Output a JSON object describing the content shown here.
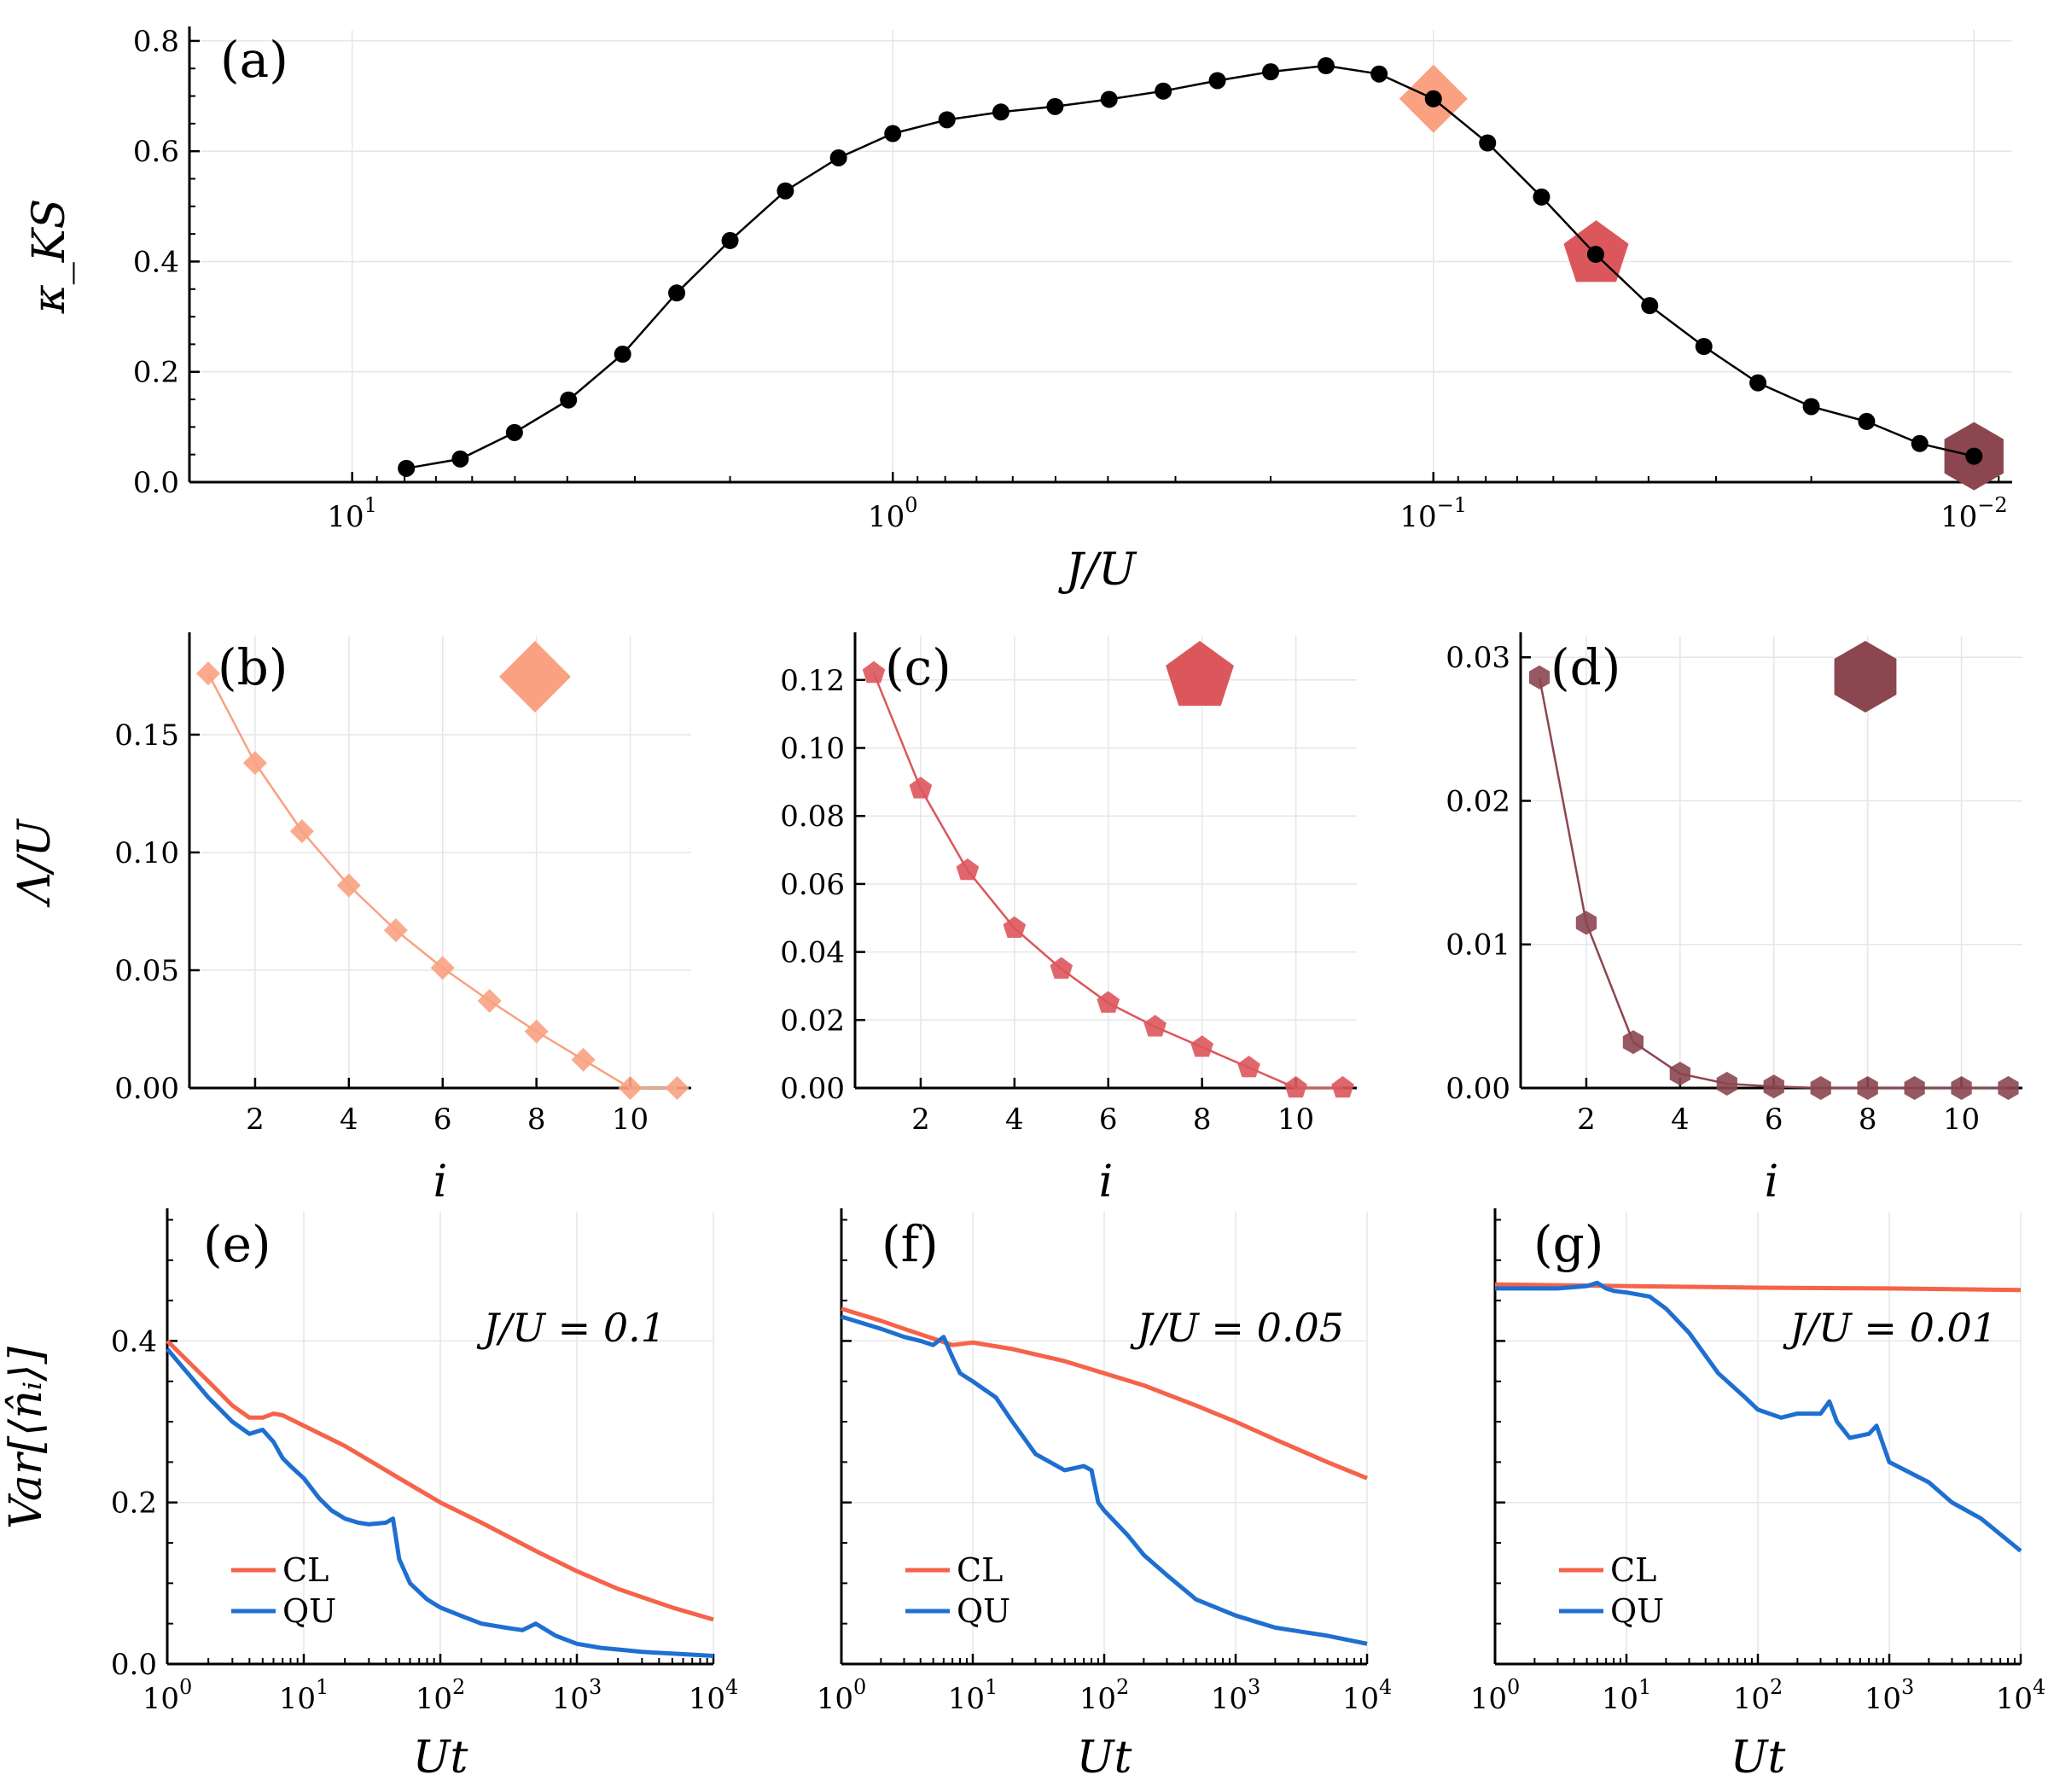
{
  "chart_data": [
    {
      "id": "a",
      "type": "line",
      "panel_label": "(a)",
      "xlabel": "J/U",
      "xscale": "log",
      "x_reversed": true,
      "xlim": [
        20,
        0.0085
      ],
      "ylabel": "κ_KS",
      "ylim": [
        0,
        0.82
      ],
      "x_ticks": [
        {
          "v": 10,
          "base": "10",
          "exp": "1"
        },
        {
          "v": 1,
          "base": "10",
          "exp": "0"
        },
        {
          "v": 0.1,
          "base": "10",
          "exp": "−1"
        },
        {
          "v": 0.01,
          "base": "10",
          "exp": "−2"
        }
      ],
      "y_ticks": [
        {
          "v": 0,
          "label": "0.0"
        },
        {
          "v": 0.2,
          "label": "0.2"
        },
        {
          "v": 0.4,
          "label": "0.4"
        },
        {
          "v": 0.6,
          "label": "0.6"
        },
        {
          "v": 0.8,
          "label": "0.8"
        }
      ],
      "grid": true,
      "series": [
        {
          "name": "kappa",
          "color": "#000000",
          "x": [
            7.94,
            6.31,
            5.01,
            3.98,
            3.16,
            2.51,
            2.0,
            1.58,
            1.26,
            1.0,
            0.794,
            0.631,
            0.501,
            0.398,
            0.316,
            0.251,
            0.2,
            0.158,
            0.126,
            0.1,
            0.0794,
            0.0631,
            0.0501,
            0.0398,
            0.0316,
            0.0251,
            0.02,
            0.0158,
            0.0126,
            0.01
          ],
          "y": [
            0.025,
            0.042,
            0.09,
            0.149,
            0.232,
            0.343,
            0.438,
            0.528,
            0.588,
            0.632,
            0.657,
            0.671,
            0.681,
            0.694,
            0.709,
            0.728,
            0.744,
            0.755,
            0.74,
            0.695,
            0.615,
            0.517,
            0.413,
            0.32,
            0.246,
            0.18,
            0.137,
            0.11,
            0.07,
            0.047
          ]
        }
      ],
      "highlights": [
        {
          "x": 0.1,
          "y": 0.695,
          "shape": "diamond",
          "color": "#f9a181"
        },
        {
          "x": 0.05,
          "y": 0.413,
          "shape": "pentagon",
          "color": "#dc575c"
        },
        {
          "x": 0.01,
          "y": 0.047,
          "shape": "hexagon",
          "color": "#8b4650"
        }
      ]
    },
    {
      "id": "b",
      "type": "line",
      "panel_label": "(b)",
      "xlabel": "i",
      "ylabel": "Λ/U",
      "xlim": [
        0.6,
        11.3
      ],
      "ylim": [
        0,
        0.192
      ],
      "x_ticks": [
        {
          "v": 2,
          "label": "2"
        },
        {
          "v": 4,
          "label": "4"
        },
        {
          "v": 6,
          "label": "6"
        },
        {
          "v": 8,
          "label": "8"
        },
        {
          "v": 10,
          "label": "10"
        }
      ],
      "y_ticks": [
        {
          "v": 0,
          "label": "0.00"
        },
        {
          "v": 0.05,
          "label": "0.05"
        },
        {
          "v": 0.1,
          "label": "0.10"
        },
        {
          "v": 0.15,
          "label": "0.15"
        }
      ],
      "marker": "diamond",
      "color": "#f9a181",
      "series": [
        {
          "name": "Lambda",
          "x": [
            1,
            2,
            3,
            4,
            5,
            6,
            7,
            8,
            9,
            10,
            11
          ],
          "y": [
            0.176,
            0.138,
            0.109,
            0.086,
            0.067,
            0.051,
            0.037,
            0.024,
            0.012,
            0.0,
            0.0
          ]
        }
      ]
    },
    {
      "id": "c",
      "type": "line",
      "panel_label": "(c)",
      "xlabel": "i",
      "ylabel": "",
      "xlim": [
        0.6,
        11.3
      ],
      "ylim": [
        0,
        0.133
      ],
      "x_ticks": [
        {
          "v": 2,
          "label": "2"
        },
        {
          "v": 4,
          "label": "4"
        },
        {
          "v": 6,
          "label": "6"
        },
        {
          "v": 8,
          "label": "8"
        },
        {
          "v": 10,
          "label": "10"
        }
      ],
      "y_ticks": [
        {
          "v": 0,
          "label": "0.00"
        },
        {
          "v": 0.02,
          "label": "0.02"
        },
        {
          "v": 0.04,
          "label": "0.04"
        },
        {
          "v": 0.06,
          "label": "0.06"
        },
        {
          "v": 0.08,
          "label": "0.08"
        },
        {
          "v": 0.1,
          "label": "0.10"
        },
        {
          "v": 0.12,
          "label": "0.12"
        }
      ],
      "marker": "pentagon",
      "color": "#dc575c",
      "series": [
        {
          "name": "Lambda",
          "x": [
            1,
            2,
            3,
            4,
            5,
            6,
            7,
            8,
            9,
            10,
            11
          ],
          "y": [
            0.122,
            0.088,
            0.064,
            0.047,
            0.035,
            0.025,
            0.018,
            0.012,
            0.006,
            0.0,
            0.0
          ]
        }
      ]
    },
    {
      "id": "d",
      "type": "line",
      "panel_label": "(d)",
      "xlabel": "i",
      "ylabel": "",
      "xlim": [
        0.6,
        11.3
      ],
      "ylim": [
        0,
        0.0315
      ],
      "x_ticks": [
        {
          "v": 2,
          "label": "2"
        },
        {
          "v": 4,
          "label": "4"
        },
        {
          "v": 6,
          "label": "6"
        },
        {
          "v": 8,
          "label": "8"
        },
        {
          "v": 10,
          "label": "10"
        }
      ],
      "y_ticks": [
        {
          "v": 0,
          "label": "0.00"
        },
        {
          "v": 0.01,
          "label": "0.01"
        },
        {
          "v": 0.02,
          "label": "0.02"
        },
        {
          "v": 0.03,
          "label": "0.03"
        }
      ],
      "marker": "hexagon",
      "color": "#8b4650",
      "series": [
        {
          "name": "Lambda",
          "x": [
            1,
            2,
            3,
            4,
            5,
            6,
            7,
            8,
            9,
            10,
            11
          ],
          "y": [
            0.0286,
            0.0115,
            0.0032,
            0.001,
            0.0003,
            0.0001,
            0.0,
            0.0,
            0.0,
            0.0,
            0.0
          ]
        }
      ]
    },
    {
      "id": "e",
      "type": "line",
      "panel_label": "(e)",
      "xlabel": "Ut",
      "ylabel": "Var[⟨n̂ᵢ⟩]",
      "xscale": "log",
      "xlim": [
        1,
        10000
      ],
      "ylim": [
        0,
        0.56
      ],
      "annotation": "J/U = 0.1",
      "x_ticks": [
        {
          "v": 1,
          "base": "10",
          "exp": "0"
        },
        {
          "v": 10,
          "base": "10",
          "exp": "1"
        },
        {
          "v": 100,
          "base": "10",
          "exp": "2"
        },
        {
          "v": 1000,
          "base": "10",
          "exp": "3"
        },
        {
          "v": 10000,
          "base": "10",
          "exp": "4"
        }
      ],
      "y_ticks": [
        {
          "v": 0,
          "label": "0.0"
        },
        {
          "v": 0.2,
          "label": "0.2"
        },
        {
          "v": 0.4,
          "label": "0.4"
        }
      ],
      "legend": [
        "CL",
        "QU"
      ],
      "legend_loc": "lower-left",
      "series": [
        {
          "name": "CL",
          "color": "#f5634a",
          "x": [
            1,
            2,
            3,
            4,
            5,
            6,
            7,
            10,
            20,
            50,
            100,
            200,
            500,
            1000,
            2000,
            5000,
            10000
          ],
          "y": [
            0.4,
            0.35,
            0.32,
            0.305,
            0.305,
            0.31,
            0.308,
            0.295,
            0.27,
            0.23,
            0.2,
            0.175,
            0.14,
            0.115,
            0.093,
            0.07,
            0.055
          ]
        },
        {
          "name": "QU",
          "color": "#1f6fd1",
          "x": [
            1,
            2,
            3,
            4,
            5,
            6,
            7,
            8,
            10,
            13,
            16,
            20,
            25,
            30,
            40,
            45,
            50,
            60,
            80,
            100,
            150,
            200,
            300,
            400,
            500,
            700,
            1000,
            1500,
            2000,
            3000,
            5000,
            10000
          ],
          "y": [
            0.39,
            0.33,
            0.3,
            0.285,
            0.29,
            0.275,
            0.255,
            0.245,
            0.23,
            0.205,
            0.19,
            0.18,
            0.175,
            0.173,
            0.175,
            0.18,
            0.13,
            0.1,
            0.08,
            0.07,
            0.058,
            0.05,
            0.045,
            0.042,
            0.05,
            0.035,
            0.025,
            0.02,
            0.018,
            0.015,
            0.013,
            0.01
          ]
        }
      ]
    },
    {
      "id": "f",
      "type": "line",
      "panel_label": "(f)",
      "xlabel": "Ut",
      "ylabel": "",
      "xscale": "log",
      "xlim": [
        1,
        10000
      ],
      "ylim": [
        0,
        0.56
      ],
      "annotation": "J/U = 0.05",
      "x_ticks": [
        {
          "v": 1,
          "base": "10",
          "exp": "0"
        },
        {
          "v": 10,
          "base": "10",
          "exp": "1"
        },
        {
          "v": 100,
          "base": "10",
          "exp": "2"
        },
        {
          "v": 1000,
          "base": "10",
          "exp": "3"
        },
        {
          "v": 10000,
          "base": "10",
          "exp": "4"
        }
      ],
      "legend": [
        "CL",
        "QU"
      ],
      "legend_loc": "lower-left",
      "series": [
        {
          "name": "CL",
          "color": "#f5634a",
          "x": [
            1,
            2,
            3,
            5,
            7,
            10,
            20,
            50,
            100,
            200,
            500,
            1000,
            2000,
            5000,
            10000
          ],
          "y": [
            0.44,
            0.425,
            0.415,
            0.403,
            0.395,
            0.398,
            0.39,
            0.375,
            0.36,
            0.345,
            0.32,
            0.3,
            0.278,
            0.25,
            0.23
          ]
        },
        {
          "name": "QU",
          "color": "#1f6fd1",
          "x": [
            1,
            2,
            3,
            4,
            5,
            6,
            7,
            8,
            10,
            15,
            20,
            30,
            50,
            70,
            80,
            90,
            100,
            150,
            200,
            300,
            500,
            1000,
            2000,
            5000,
            10000
          ],
          "y": [
            0.43,
            0.415,
            0.405,
            0.4,
            0.395,
            0.405,
            0.38,
            0.36,
            0.35,
            0.33,
            0.3,
            0.26,
            0.24,
            0.245,
            0.24,
            0.2,
            0.19,
            0.16,
            0.135,
            0.11,
            0.08,
            0.06,
            0.045,
            0.035,
            0.025
          ]
        }
      ]
    },
    {
      "id": "g",
      "type": "line",
      "panel_label": "(g)",
      "xlabel": "Ut",
      "ylabel": "",
      "xscale": "log",
      "xlim": [
        1,
        10000
      ],
      "ylim": [
        0,
        0.56
      ],
      "annotation": "J/U = 0.01",
      "x_ticks": [
        {
          "v": 1,
          "base": "10",
          "exp": "0"
        },
        {
          "v": 10,
          "base": "10",
          "exp": "1"
        },
        {
          "v": 100,
          "base": "10",
          "exp": "2"
        },
        {
          "v": 1000,
          "base": "10",
          "exp": "3"
        },
        {
          "v": 10000,
          "base": "10",
          "exp": "4"
        }
      ],
      "legend": [
        "CL",
        "QU"
      ],
      "legend_loc": "lower-left",
      "series": [
        {
          "name": "CL",
          "color": "#f5634a",
          "x": [
            1,
            10,
            100,
            1000,
            10000
          ],
          "y": [
            0.47,
            0.468,
            0.466,
            0.465,
            0.463
          ]
        },
        {
          "name": "QU",
          "color": "#1f6fd1",
          "x": [
            1,
            2,
            3,
            5,
            6,
            7,
            8,
            10,
            15,
            20,
            30,
            50,
            80,
            100,
            150,
            200,
            300,
            350,
            400,
            500,
            700,
            800,
            1000,
            2000,
            3000,
            5000,
            10000
          ],
          "y": [
            0.465,
            0.465,
            0.465,
            0.468,
            0.472,
            0.465,
            0.462,
            0.46,
            0.455,
            0.44,
            0.41,
            0.36,
            0.33,
            0.315,
            0.305,
            0.31,
            0.31,
            0.325,
            0.3,
            0.28,
            0.285,
            0.295,
            0.25,
            0.225,
            0.2,
            0.18,
            0.14
          ]
        }
      ]
    }
  ]
}
